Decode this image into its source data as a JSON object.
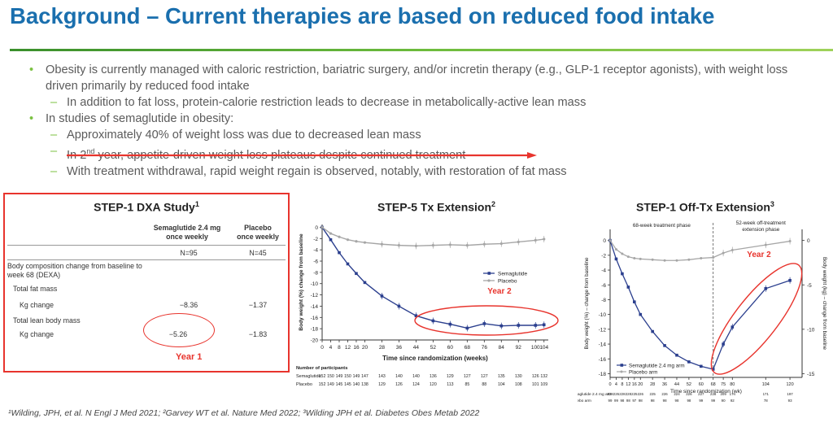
{
  "slide": {
    "title": "Background – Current therapies are based on reduced food intake",
    "bullets": [
      {
        "level": 1,
        "text": "Obesity is currently managed with caloric restriction, bariatric surgery, and/or incretin therapy (e.g., GLP-1 receptor agonists), with weight loss driven primarily by reduced food intake"
      },
      {
        "level": 2,
        "text": "In addition to fat loss, protein-calorie restriction leads to decrease in metabolically-active lean mass"
      },
      {
        "level": 1,
        "text": "In studies of semaglutide in obesity:"
      },
      {
        "level": 2,
        "text": "Approximately 40% of weight loss was due to decreased lean mass"
      },
      {
        "level": 2,
        "text_pre": "In 2",
        "text_sup": "nd",
        "text_post": " year, appetite-driven weight loss plateaus despite continued treatment"
      },
      {
        "level": 2,
        "text": "With treatment withdrawal, rapid weight regain is observed, notably, with restoration of fat mass"
      }
    ],
    "citation": "¹Wilding, JPH, et al. N Engl J Med 2021; ²Garvey WT et al. Nature Med 2022; ³Wilding JPH et al. Diabetes Obes Metab 2022"
  },
  "dxa": {
    "title": "STEP-1 DXA Study",
    "title_sup": "1",
    "col1_line1": "Semaglutide 2.4 mg",
    "col1_line2": "once weekly",
    "col2_line1": "Placebo",
    "col2_line2": "once weekly",
    "n1": "N=95",
    "n2": "N=45",
    "section_line1": "Body composition change from baseline to",
    "section_line2": "week 68 (DEXA)",
    "fat_label": "Total fat mass",
    "fat_sub": "Kg change",
    "fat_v1": "−8.36",
    "fat_v2": "−1.37",
    "lean_label": "Total lean body mass",
    "lean_sub": "Kg change",
    "lean_v1": "−5.26",
    "lean_v2": "−1.83",
    "annotation": "Year 1",
    "annotation_color": "#e8342d"
  },
  "chart_data": [
    {
      "type": "line",
      "title": "STEP-5 Tx Extension",
      "title_sup": "2",
      "xlabel": "Time since randomization (weeks)",
      "ylabel": "Body weight (%) change from baseline",
      "x": [
        0,
        4,
        8,
        12,
        16,
        20,
        28,
        36,
        44,
        52,
        60,
        68,
        76,
        84,
        92,
        100,
        104
      ],
      "x_ticks": [
        0,
        4,
        8,
        12,
        16,
        20,
        28,
        36,
        44,
        52,
        60,
        68,
        76,
        84,
        92,
        100,
        104
      ],
      "x_tick_labels": [
        "0",
        "4",
        "8",
        "12",
        "16",
        "20",
        "28",
        "36",
        "44",
        "52",
        "60",
        "68",
        "76",
        "84",
        "92",
        "100",
        "104"
      ],
      "y_ticks": [
        0,
        -2,
        -4,
        -6,
        -8,
        -10,
        -12,
        -14,
        -16,
        -18,
        -20
      ],
      "ylim": [
        -20,
        0.5
      ],
      "xlim": [
        0,
        106
      ],
      "series": [
        {
          "name": "Semaglutide",
          "color": "#2b3f8e",
          "values": [
            0,
            -2.2,
            -4.5,
            -6.5,
            -8.2,
            -9.8,
            -12.2,
            -14,
            -15.7,
            -16.6,
            -17.2,
            -17.9,
            -17.1,
            -17.5,
            -17.4,
            -17.4,
            -17.3
          ]
        },
        {
          "name": "Placebo",
          "color": "#a6a6a6",
          "values": [
            0,
            -1.1,
            -1.7,
            -2.2,
            -2.5,
            -2.7,
            -3,
            -3.2,
            -3.3,
            -3.2,
            -3.1,
            -3.2,
            -3,
            -2.9,
            -2.6,
            -2.3,
            -2.1
          ]
        }
      ],
      "annotation": "Year 2",
      "participants_label": "Number of participants",
      "participants": [
        {
          "arm": "Semaglutide",
          "counts": [
            "152",
            "150",
            "149",
            "150",
            "149",
            "147",
            "143",
            "140",
            "140",
            "136",
            "129",
            "127",
            "127",
            "135",
            "130",
            "126",
            "132"
          ]
        },
        {
          "arm": "Placebo",
          "counts": [
            "152",
            "149",
            "145",
            "145",
            "140",
            "138",
            "129",
            "126",
            "124",
            "120",
            "113",
            "85",
            "88",
            "104",
            "108",
            "101",
            "109"
          ]
        }
      ]
    },
    {
      "type": "line",
      "title": "STEP-1 Off-Tx Extension",
      "title_sup": "3",
      "xlabel": "Time since randomization (wk)",
      "ylabel": "Body weight (%) – change from baseline",
      "ylabel_right": "Body weight (kg) – change from baseline",
      "phase1": "68-week treatment phase",
      "phase2_line1": "52-week off-treatment",
      "phase2_line2": "extension phase",
      "x": [
        0,
        4,
        8,
        12,
        16,
        20,
        28,
        36,
        44,
        52,
        60,
        68,
        75,
        80,
        104,
        120
      ],
      "x_tick_labels": [
        "0",
        "4",
        "8",
        "12",
        "16",
        "20",
        "28",
        "36",
        "44",
        "52",
        "60",
        "68",
        "75",
        "80",
        "104",
        "120"
      ],
      "y_ticks": [
        0,
        -2,
        -4,
        -6,
        -8,
        -10,
        -12,
        -14,
        -16,
        -18
      ],
      "y_ticks_right": [
        0,
        -5,
        -10,
        -15
      ],
      "ylim": [
        -18.5,
        1.5
      ],
      "series": [
        {
          "name": "Semaglutide 2.4 mg arm",
          "color": "#2b3f8e",
          "values": [
            0,
            -2.5,
            -4.5,
            -6.3,
            -8.3,
            -10,
            -12.3,
            -14.2,
            -15.5,
            -16.4,
            -17.0,
            -17.4,
            -14,
            -11.7,
            -6.5,
            -5.4
          ]
        },
        {
          "name": "Placebo arm",
          "color": "#a6a6a6",
          "values": [
            0,
            -1.2,
            -1.8,
            -2.2,
            -2.4,
            -2.5,
            -2.6,
            -2.7,
            -2.7,
            -2.6,
            -2.4,
            -2.3,
            -1.7,
            -1.3,
            -0.6,
            -0.1
          ]
        }
      ],
      "annotation": "Year 2",
      "participants": [
        {
          "arm": "Semaglutide 2.4 mg arm",
          "counts": [
            "228",
            "226",
            "228",
            "228",
            "225",
            "226",
            "225",
            "226",
            "224",
            "226",
            "227",
            "228",
            "209",
            "174",
            "171",
            "197"
          ]
        },
        {
          "arm": "Placebo arm",
          "counts": [
            "99",
            "99",
            "98",
            "98",
            "97",
            "98",
            "98",
            "98",
            "98",
            "98",
            "99",
            "99",
            "90",
            "92",
            "78",
            "93"
          ]
        }
      ]
    }
  ]
}
